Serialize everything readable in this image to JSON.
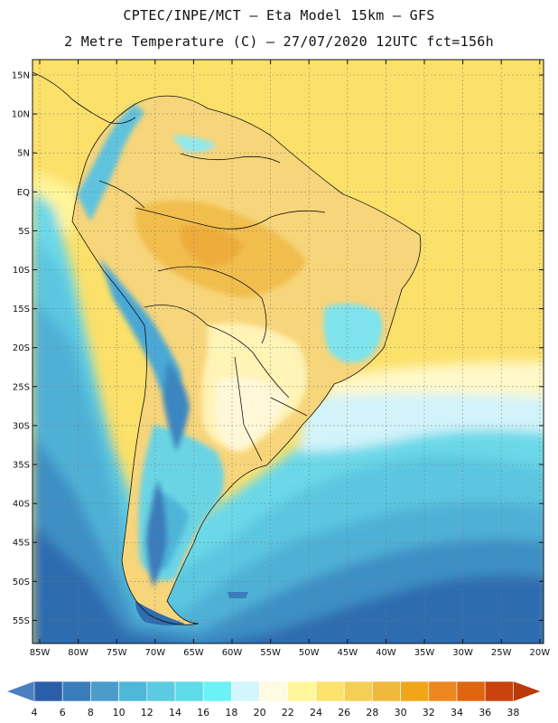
{
  "header": {
    "line1": "CPTEC/INPE/MCT –  Eta Model 15km – GFS",
    "line2": "2 Metre Temperature (C) – 27/07/2020 12UTC fct=156h"
  },
  "map": {
    "lat_labels": [
      "15N",
      "10N",
      "5N",
      "EQ",
      "5S",
      "10S",
      "15S",
      "20S",
      "25S",
      "30S",
      "35S",
      "40S",
      "45S",
      "50S",
      "55S"
    ],
    "lon_labels": [
      "85W",
      "80W",
      "75W",
      "70W",
      "65W",
      "60W",
      "55W",
      "50W",
      "45W",
      "40W",
      "35W",
      "30W",
      "25W",
      "20W"
    ]
  },
  "colorbar": {
    "labels": [
      "4",
      "6",
      "8",
      "10",
      "12",
      "14",
      "16",
      "18",
      "20",
      "22",
      "24",
      "26",
      "28",
      "30",
      "32",
      "34",
      "36",
      "38"
    ],
    "colors": [
      "#2b5ea8",
      "#3a7dbb",
      "#4b9ccc",
      "#4fb8d8",
      "#5ccae2",
      "#5edbe8",
      "#6af2f6",
      "#d2f6fb",
      "#fffbe2",
      "#fff79a",
      "#fbe36e",
      "#f5cf55",
      "#f0b93e",
      "#f3a51a",
      "#ee8720",
      "#e06510",
      "#c8440a"
    ],
    "low_arrow": "#4a7fc0",
    "high_arrow": "#b83a08"
  }
}
